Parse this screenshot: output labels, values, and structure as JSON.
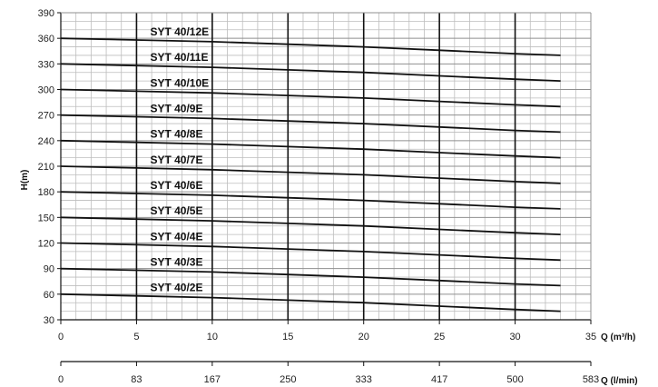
{
  "chart_data": {
    "type": "line",
    "ylabel": "H(m)",
    "xlabel": "Q (m³/h)",
    "xlabel2": "Q (l/min)",
    "xlim": [
      0,
      35
    ],
    "ylim": [
      30,
      390
    ],
    "y_ticks": [
      "30",
      "60",
      "90",
      "120",
      "150",
      "180",
      "210",
      "240",
      "270",
      "300",
      "330",
      "360",
      "390"
    ],
    "x_ticks": [
      "0",
      "5",
      "10",
      "15",
      "20",
      "25",
      "30",
      "35"
    ],
    "x2_ticks": [
      "0",
      "83",
      "167",
      "250",
      "333",
      "417",
      "500",
      "583"
    ],
    "grid": true,
    "series": [
      {
        "name": "SYT 40/2E",
        "x": [
          0,
          5,
          10,
          15,
          20,
          25,
          30,
          33
        ],
        "y": [
          60,
          58,
          56,
          53,
          50,
          46,
          42,
          40
        ]
      },
      {
        "name": "SYT 40/3E",
        "x": [
          0,
          5,
          10,
          15,
          20,
          25,
          30,
          33
        ],
        "y": [
          90,
          88,
          86,
          83,
          80,
          76,
          72,
          70
        ]
      },
      {
        "name": "SYT 40/4E",
        "x": [
          0,
          5,
          10,
          15,
          20,
          25,
          30,
          33
        ],
        "y": [
          120,
          118,
          116,
          113,
          110,
          106,
          102,
          100
        ]
      },
      {
        "name": "SYT 40/5E",
        "x": [
          0,
          5,
          10,
          15,
          20,
          25,
          30,
          33
        ],
        "y": [
          150,
          148,
          146,
          143,
          140,
          136,
          132,
          130
        ]
      },
      {
        "name": "SYT 40/6E",
        "x": [
          0,
          5,
          10,
          15,
          20,
          25,
          30,
          33
        ],
        "y": [
          180,
          178,
          176,
          173,
          170,
          166,
          162,
          160
        ]
      },
      {
        "name": "SYT 40/7E",
        "x": [
          0,
          5,
          10,
          15,
          20,
          25,
          30,
          33
        ],
        "y": [
          210,
          208,
          206,
          203,
          200,
          196,
          192,
          190
        ]
      },
      {
        "name": "SYT 40/8E",
        "x": [
          0,
          5,
          10,
          15,
          20,
          25,
          30,
          33
        ],
        "y": [
          240,
          238,
          236,
          233,
          230,
          226,
          222,
          220
        ]
      },
      {
        "name": "SYT 40/9E",
        "x": [
          0,
          5,
          10,
          15,
          20,
          25,
          30,
          33
        ],
        "y": [
          270,
          268,
          266,
          263,
          260,
          256,
          252,
          250
        ]
      },
      {
        "name": "SYT 40/10E",
        "x": [
          0,
          5,
          10,
          15,
          20,
          25,
          30,
          33
        ],
        "y": [
          300,
          298,
          296,
          293,
          290,
          286,
          282,
          280
        ]
      },
      {
        "name": "SYT 40/11E",
        "x": [
          0,
          5,
          10,
          15,
          20,
          25,
          30,
          33
        ],
        "y": [
          330,
          328,
          326,
          323,
          320,
          316,
          312,
          310
        ]
      },
      {
        "name": "SYT 40/12E",
        "x": [
          0,
          5,
          10,
          15,
          20,
          25,
          30,
          33
        ],
        "y": [
          360,
          358,
          356,
          353,
          350,
          346,
          342,
          340
        ]
      }
    ]
  }
}
